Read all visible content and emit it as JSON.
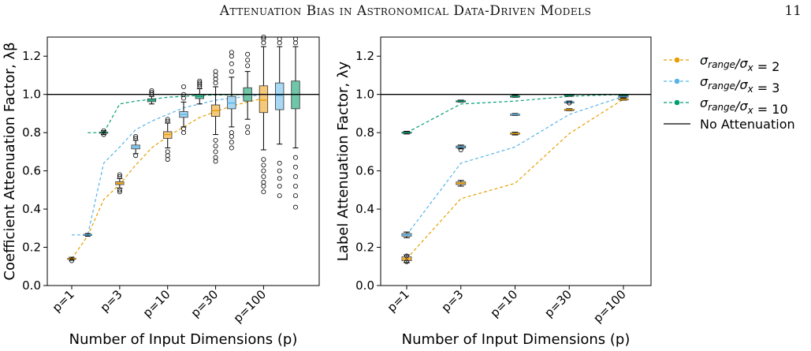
{
  "header": {
    "title": "Attenuation Bias in Astronomical Data-Driven Models",
    "page_number": "11"
  },
  "colors": {
    "s2": "#E69F00",
    "s2_fill": "#F6C87A",
    "s3": "#56B4E9",
    "s3_fill": "#A8D8F3",
    "s10": "#009E73",
    "s10_fill": "#6FC6A8",
    "ref": "#000000"
  },
  "chart_data": [
    {
      "type": "box",
      "ylabel": "Coefficient Attenuation Factor, λβ",
      "xlabel": "Number of Input Dimensions (p)",
      "ylim": [
        0.0,
        1.3
      ],
      "yticks": [
        "0.0",
        "0.2",
        "0.4",
        "0.6",
        "0.8",
        "1.0",
        "1.2"
      ],
      "categories": [
        "p=1",
        "p=3",
        "p=10",
        "p=30",
        "p=100"
      ],
      "reference_line": {
        "y": 1.0,
        "name": "No Attenuation"
      },
      "series": [
        {
          "name": "σrange/σx = 2",
          "curve_x": [
            1,
            2,
            3,
            4,
            5,
            6,
            7,
            8,
            9,
            10,
            11,
            12,
            13
          ],
          "curve_y": [
            0.14,
            0.26,
            0.45,
            0.53,
            0.63,
            0.72,
            0.78,
            0.83,
            0.88,
            0.91,
            0.94,
            0.96,
            0.98
          ],
          "boxes": [
            {
              "x": 1,
              "median": 0.14,
              "q1": 0.137,
              "q3": 0.143,
              "wlo": 0.132,
              "whi": 0.148,
              "fliers": [
                0.13
              ]
            },
            {
              "x": 4,
              "median": 0.535,
              "q1": 0.528,
              "q3": 0.543,
              "wlo": 0.51,
              "whi": 0.56,
              "fliers": [
                0.49,
                0.5,
                0.57,
                0.58
              ]
            },
            {
              "x": 7,
              "median": 0.79,
              "q1": 0.77,
              "q3": 0.805,
              "wlo": 0.72,
              "whi": 0.85,
              "fliers": [
                0.66,
                0.68,
                0.7,
                0.86,
                0.87
              ]
            },
            {
              "x": 10,
              "median": 0.915,
              "q1": 0.885,
              "q3": 0.945,
              "wlo": 0.79,
              "whi": 1.04,
              "fliers": [
                0.65,
                0.67,
                0.7,
                0.73,
                0.76,
                1.06,
                1.08,
                1.1,
                1.12
              ]
            },
            {
              "x": 13,
              "median": 0.97,
              "q1": 0.905,
              "q3": 1.045,
              "wlo": 0.71,
              "whi": 1.25,
              "fliers": [
                0.49,
                0.52,
                0.54,
                0.57,
                0.6,
                0.63,
                0.66,
                1.27,
                1.29,
                1.3
              ]
            }
          ]
        },
        {
          "name": "σrange/σx = 3",
          "curve_x": [
            1,
            2,
            3,
            4,
            5,
            6,
            7,
            8,
            9,
            10,
            11,
            12,
            13
          ],
          "curve_y": [
            0.265,
            0.265,
            0.64,
            0.725,
            0.815,
            0.86,
            0.895,
            0.93,
            0.95,
            0.97,
            0.98,
            0.99,
            0.998
          ],
          "boxes": [
            {
              "x": 2,
              "median": 0.265,
              "q1": 0.262,
              "q3": 0.268,
              "wlo": 0.258,
              "whi": 0.272,
              "fliers": []
            },
            {
              "x": 5,
              "median": 0.725,
              "q1": 0.715,
              "q3": 0.735,
              "wlo": 0.69,
              "whi": 0.76,
              "fliers": [
                0.68,
                0.77,
                0.78
              ]
            },
            {
              "x": 8,
              "median": 0.895,
              "q1": 0.88,
              "q3": 0.91,
              "wlo": 0.83,
              "whi": 0.96,
              "fliers": [
                0.8,
                0.82,
                0.98,
                1.0,
                1.04
              ]
            },
            {
              "x": 11,
              "median": 0.955,
              "q1": 0.925,
              "q3": 0.99,
              "wlo": 0.83,
              "whi": 1.09,
              "fliers": [
                0.72,
                0.75,
                0.78,
                0.8,
                1.12,
                1.16,
                1.2,
                1.22
              ]
            },
            {
              "x": 14,
              "median": 0.995,
              "q1": 0.92,
              "q3": 1.06,
              "wlo": 0.74,
              "whi": 1.25,
              "fliers": [
                0.47,
                0.52,
                0.56,
                0.6,
                0.64,
                1.27,
                1.29
              ]
            }
          ]
        },
        {
          "name": "σrange/σx = 10",
          "curve_x": [
            2,
            3,
            4,
            5,
            6,
            7,
            8,
            9,
            10,
            11,
            12,
            13,
            14,
            15
          ],
          "curve_y": [
            0.8,
            0.8,
            0.95,
            0.965,
            0.975,
            0.985,
            0.99,
            0.995,
            0.997,
            0.998,
            0.999,
            1.0,
            1.0,
            1.0
          ],
          "boxes": [
            {
              "x": 3,
              "median": 0.8,
              "q1": 0.797,
              "q3": 0.803,
              "wlo": 0.79,
              "whi": 0.81,
              "fliers": [
                0.79,
                0.81
              ]
            },
            {
              "x": 6,
              "median": 0.97,
              "q1": 0.962,
              "q3": 0.977,
              "wlo": 0.95,
              "whi": 0.99,
              "fliers": [
                1.0,
                1.01,
                1.02
              ]
            },
            {
              "x": 9,
              "median": 0.99,
              "q1": 0.978,
              "q3": 1.0,
              "wlo": 0.95,
              "whi": 1.03,
              "fliers": [
                1.04,
                1.05,
                1.06,
                1.07
              ]
            },
            {
              "x": 12,
              "median": 1.0,
              "q1": 0.965,
              "q3": 1.035,
              "wlo": 0.87,
              "whi": 1.12,
              "fliers": [
                0.8,
                0.83,
                1.15,
                1.18,
                1.21
              ]
            },
            {
              "x": 15,
              "median": 1.0,
              "q1": 0.925,
              "q3": 1.07,
              "wlo": 0.72,
              "whi": 1.25,
              "fliers": [
                0.41,
                0.47,
                0.52,
                0.57,
                0.62,
                0.67,
                1.27,
                1.29
              ]
            }
          ]
        }
      ]
    },
    {
      "type": "box",
      "ylabel": "Label Attenuation Factor, λy",
      "xlabel": "Number of Input Dimensions (p)",
      "ylim": [
        0.0,
        1.3
      ],
      "yticks": [
        "0.0",
        "0.2",
        "0.4",
        "0.6",
        "0.8",
        "1.0",
        "1.2"
      ],
      "categories": [
        "p=1",
        "p=3",
        "p=10",
        "p=30",
        "p=100"
      ],
      "reference_line": {
        "y": 1.0,
        "name": "No Attenuation"
      },
      "series": [
        {
          "name": "σrange/σx = 2",
          "curve_x": [
            1,
            2,
            3,
            4,
            5
          ],
          "curve_y": [
            0.14,
            0.455,
            0.535,
            0.795,
            0.975
          ],
          "boxes": [
            {
              "x": 1,
              "median": 0.14,
              "q1": 0.13,
              "q3": 0.15,
              "wlo": 0.12,
              "whi": 0.16,
              "fliers": [
                0.125,
                0.155
              ]
            },
            {
              "x": 2,
              "median": 0.535,
              "q1": 0.528,
              "q3": 0.542,
              "wlo": 0.52,
              "whi": 0.55,
              "fliers": []
            },
            {
              "x": 3,
              "median": 0.795,
              "q1": 0.792,
              "q3": 0.798,
              "wlo": 0.788,
              "whi": 0.802,
              "fliers": []
            },
            {
              "x": 4,
              "median": 0.92,
              "q1": 0.918,
              "q3": 0.922,
              "wlo": 0.915,
              "whi": 0.925,
              "fliers": []
            },
            {
              "x": 5,
              "median": 0.975,
              "q1": 0.973,
              "q3": 0.977,
              "wlo": 0.97,
              "whi": 0.98,
              "fliers": []
            }
          ]
        },
        {
          "name": "σrange/σx = 3",
          "curve_x": [
            1,
            2,
            3,
            4,
            5
          ],
          "curve_y": [
            0.265,
            0.64,
            0.725,
            0.895,
            0.99
          ],
          "boxes": [
            {
              "x": 1,
              "median": 0.265,
              "q1": 0.258,
              "q3": 0.272,
              "wlo": 0.25,
              "whi": 0.28,
              "fliers": []
            },
            {
              "x": 2,
              "median": 0.725,
              "q1": 0.72,
              "q3": 0.73,
              "wlo": 0.715,
              "whi": 0.735,
              "fliers": [
                0.71
              ]
            },
            {
              "x": 3,
              "median": 0.895,
              "q1": 0.893,
              "q3": 0.897,
              "wlo": 0.89,
              "whi": 0.9,
              "fliers": []
            },
            {
              "x": 4,
              "median": 0.96,
              "q1": 0.958,
              "q3": 0.962,
              "wlo": 0.955,
              "whi": 0.965,
              "fliers": [
                0.955
              ]
            },
            {
              "x": 5,
              "median": 0.99,
              "q1": 0.988,
              "q3": 0.992,
              "wlo": 0.985,
              "whi": 0.995,
              "fliers": []
            }
          ]
        },
        {
          "name": "σrange/σx = 10",
          "curve_x": [
            1,
            2,
            3,
            4,
            5
          ],
          "curve_y": [
            0.8,
            0.95,
            0.965,
            0.99,
            1.0
          ],
          "boxes": [
            {
              "x": 1,
              "median": 0.8,
              "q1": 0.797,
              "q3": 0.803,
              "wlo": 0.793,
              "whi": 0.807,
              "fliers": []
            },
            {
              "x": 2,
              "median": 0.965,
              "q1": 0.963,
              "q3": 0.967,
              "wlo": 0.96,
              "whi": 0.97,
              "fliers": []
            },
            {
              "x": 3,
              "median": 0.99,
              "q1": 0.988,
              "q3": 0.992,
              "wlo": 0.985,
              "whi": 0.995,
              "fliers": []
            },
            {
              "x": 4,
              "median": 0.995,
              "q1": 0.993,
              "q3": 0.997,
              "wlo": 0.99,
              "whi": 1.0,
              "fliers": []
            },
            {
              "x": 5,
              "median": 0.997,
              "q1": 0.995,
              "q3": 0.999,
              "wlo": 0.992,
              "whi": 1.0,
              "fliers": []
            }
          ]
        }
      ]
    }
  ],
  "legend": {
    "items": [
      {
        "base": "σ",
        "sub": "range",
        "mid": "/σ",
        "sub2": "x",
        "tail": " = 2",
        "marker": "s2"
      },
      {
        "base": "σ",
        "sub": "range",
        "mid": "/σ",
        "sub2": "x",
        "tail": " = 3",
        "marker": "s3"
      },
      {
        "base": "σ",
        "sub": "range",
        "mid": "/σ",
        "sub2": "x",
        "tail": " = 10",
        "marker": "s10"
      },
      {
        "label": "No Attenuation",
        "marker": "ref"
      }
    ]
  }
}
